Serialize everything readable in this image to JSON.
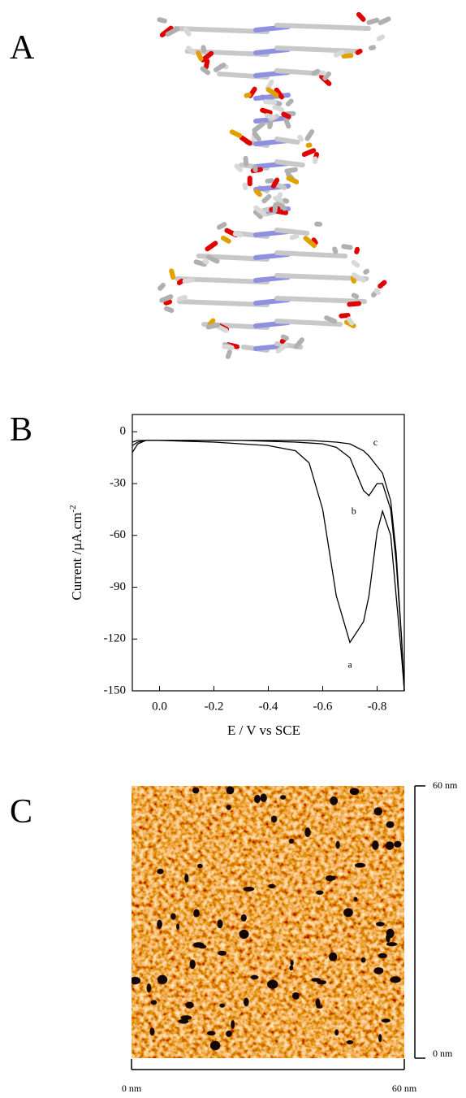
{
  "panels": {
    "a": "A",
    "b": "B",
    "c": "C"
  },
  "chart_data": {
    "type": "line",
    "x_label": "E / V vs  SCE",
    "y_label": "Current /µA.cm",
    "y_label_sup": "-2",
    "xlim": [
      0.1,
      -0.9
    ],
    "xticks": [
      {
        "value": 0,
        "label": "0.0"
      },
      -0.2,
      -0.4,
      -0.6,
      -0.8
    ],
    "ylim": [
      -150,
      10
    ],
    "yticks": [
      0,
      -30,
      -60,
      -90,
      -120,
      -150
    ],
    "x": [
      0.1,
      0.08,
      0.05,
      0,
      -0.1,
      -0.2,
      -0.3,
      -0.4,
      -0.5,
      -0.55,
      -0.6,
      -0.65,
      -0.7,
      -0.75,
      -0.77,
      -0.8,
      -0.82,
      -0.85,
      -0.87,
      -0.89,
      -0.9
    ],
    "series": [
      {
        "name": "a",
        "color": "#000000",
        "values": [
          -12,
          -7,
          -5,
          -5,
          -5.5,
          -6,
          -7,
          -8,
          -11,
          -18,
          -45,
          -95,
          -122,
          -110,
          -95,
          -58,
          -46,
          -60,
          -95,
          -130,
          -150
        ]
      },
      {
        "name": "b",
        "color": "#000000",
        "values": [
          -8,
          -6,
          -5,
          -5,
          -5,
          -5,
          -5,
          -5.5,
          -6,
          -6.5,
          -7,
          -9,
          -15,
          -34,
          -37,
          -30,
          -30,
          -45,
          -75,
          -120,
          -150
        ]
      },
      {
        "name": "c",
        "color": "#000000",
        "values": [
          -6,
          -5,
          -5,
          -5,
          -5,
          -5,
          -5,
          -5,
          -5,
          -5,
          -5.5,
          -6,
          -7,
          -11,
          -14,
          -20,
          -24,
          -40,
          -70,
          -120,
          -150
        ]
      }
    ]
  },
  "afm": {
    "x_labels": [
      "0 nm",
      "60 nm"
    ],
    "y_labels": [
      "0 nm",
      "60 nm"
    ]
  }
}
